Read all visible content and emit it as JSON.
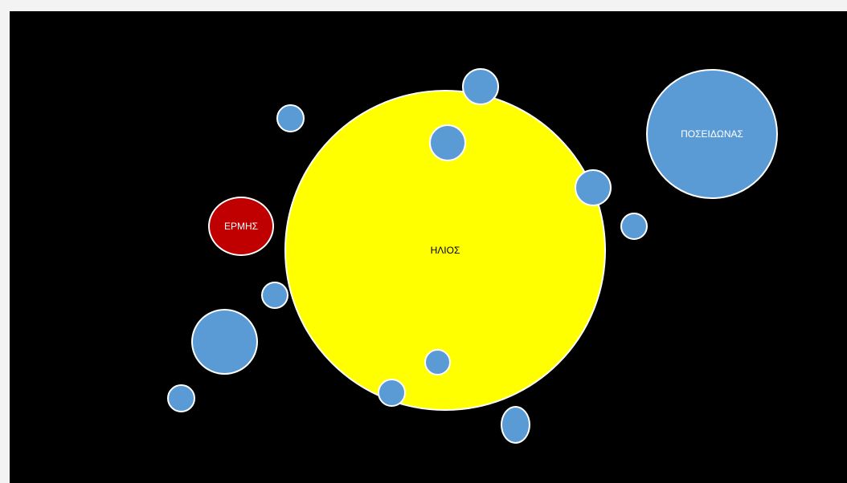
{
  "slide": {
    "background": "#000000",
    "sun": {
      "label": "ΗΛΙΟΣ",
      "fill": "#ffff00",
      "text_color": "#000000"
    },
    "mercury": {
      "label": "ΕΡΜΗΣ",
      "fill": "#c00000",
      "text_color": "#ffffff"
    },
    "neptune": {
      "label": "ΠΟΣΕΙΔΩΝΑΣ",
      "fill": "#5b9bd5",
      "text_color": "#ffffff"
    },
    "small_body_fill": "#5b9bd5"
  }
}
